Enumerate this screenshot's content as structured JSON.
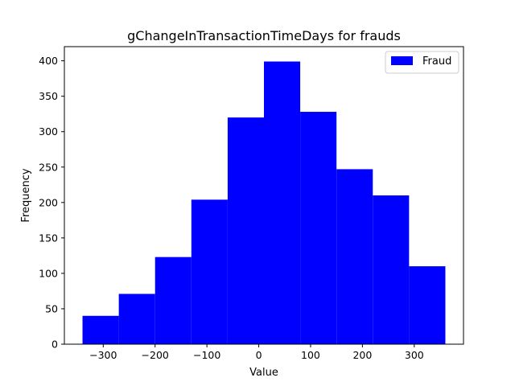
{
  "chart_data": {
    "type": "bar",
    "title": "gChangeInTransactionTimeDays for frauds",
    "xlabel": "Value",
    "ylabel": "Frequency",
    "series": [
      {
        "name": "Fraud",
        "color": "#0000ff",
        "bins": [
          {
            "start": -340,
            "end": -270,
            "value": 40
          },
          {
            "start": -270,
            "end": -200,
            "value": 71
          },
          {
            "start": -200,
            "end": -130,
            "value": 123
          },
          {
            "start": -130,
            "end": -60,
            "value": 204
          },
          {
            "start": -60,
            "end": 10,
            "value": 320
          },
          {
            "start": 10,
            "end": 80,
            "value": 399
          },
          {
            "start": 80,
            "end": 150,
            "value": 328
          },
          {
            "start": 150,
            "end": 220,
            "value": 247
          },
          {
            "start": 220,
            "end": 290,
            "value": 210
          },
          {
            "start": 290,
            "end": 360,
            "value": 110
          }
        ]
      }
    ],
    "xlim": [
      -375,
      395
    ],
    "ylim": [
      0,
      420
    ],
    "xticks": [
      -300,
      -200,
      -100,
      0,
      100,
      200,
      300
    ],
    "xtick_labels": [
      "−300",
      "−200",
      "−100",
      "0",
      "100",
      "200",
      "300"
    ],
    "yticks": [
      0,
      50,
      100,
      150,
      200,
      250,
      300,
      350,
      400
    ],
    "ytick_labels": [
      "0",
      "50",
      "100",
      "150",
      "200",
      "250",
      "300",
      "350",
      "400"
    ],
    "grid": false,
    "legend": "top-right"
  }
}
